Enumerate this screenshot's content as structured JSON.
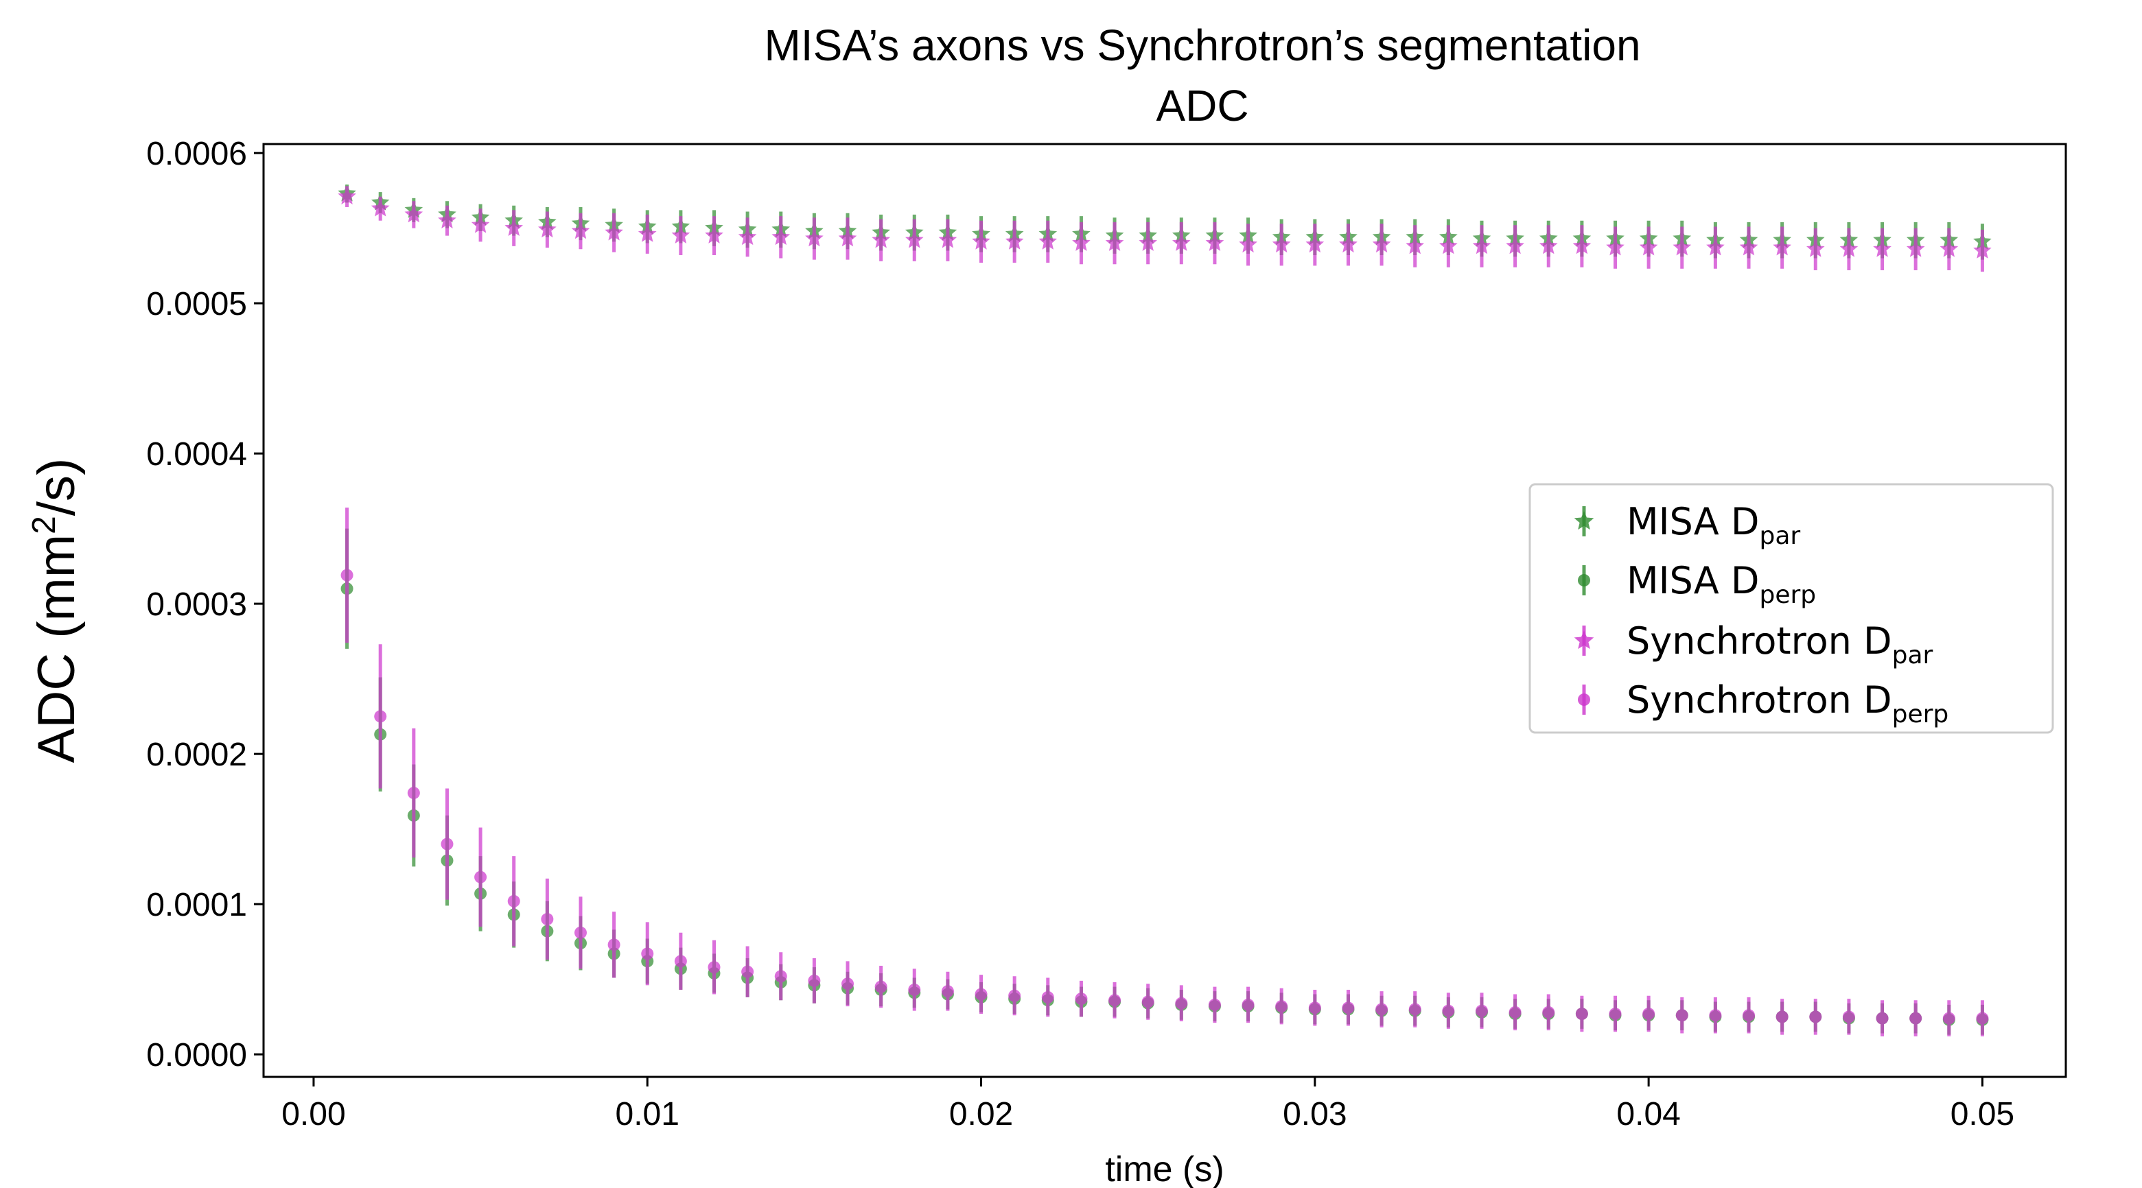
{
  "chart_data": {
    "type": "scatter",
    "title": "MISA’s axons vs Synchrotron’s segmentation",
    "subtitle": "ADC",
    "xlabel": "time (s)",
    "ylabel_main": "ADC (mm",
    "ylabel_sup": "2",
    "ylabel_tail": "/s)",
    "xlim": [
      -0.0015,
      0.0525
    ],
    "ylim": [
      -1.5e-05,
      0.000606
    ],
    "x_ticks": [
      0.0,
      0.01,
      0.02,
      0.03,
      0.04,
      0.05
    ],
    "x_tick_labels": [
      "0.00",
      "0.01",
      "0.02",
      "0.03",
      "0.04",
      "0.05"
    ],
    "y_ticks": [
      0.0,
      0.0001,
      0.0002,
      0.0003,
      0.0004,
      0.0005,
      0.0006
    ],
    "y_tick_labels": [
      "0.0000",
      "0.0001",
      "0.0002",
      "0.0003",
      "0.0004",
      "0.0005",
      "0.0006"
    ],
    "grid": false,
    "legend_position": "center-right",
    "x": [
      0.001,
      0.002,
      0.003,
      0.004,
      0.005,
      0.006,
      0.007,
      0.008,
      0.009,
      0.01,
      0.011,
      0.012,
      0.013,
      0.014,
      0.015,
      0.016,
      0.017,
      0.018,
      0.019,
      0.02,
      0.021,
      0.022,
      0.023,
      0.024,
      0.025,
      0.026,
      0.027,
      0.028,
      0.029,
      0.03,
      0.031,
      0.032,
      0.033,
      0.034,
      0.035,
      0.036,
      0.037,
      0.038,
      0.039,
      0.04,
      0.041,
      0.042,
      0.043,
      0.044,
      0.045,
      0.046,
      0.047,
      0.048,
      0.049,
      0.05
    ],
    "series": [
      {
        "name": "MISA D",
        "sub": "par",
        "marker": "star",
        "color": "#2e8b2e",
        "values": [
          0.000573,
          0.000567,
          0.000562,
          0.000559,
          0.000557,
          0.000555,
          0.000554,
          0.000553,
          0.000552,
          0.000551,
          0.000551,
          0.00055,
          0.000549,
          0.000549,
          0.000548,
          0.000548,
          0.000547,
          0.000547,
          0.000547,
          0.000546,
          0.000546,
          0.000546,
          0.000546,
          0.000545,
          0.000545,
          0.000545,
          0.000545,
          0.000545,
          0.000544,
          0.000544,
          0.000544,
          0.000544,
          0.000544,
          0.000544,
          0.000543,
          0.000543,
          0.000543,
          0.000543,
          0.000543,
          0.000543,
          0.000543,
          0.000542,
          0.000542,
          0.000542,
          0.000542,
          0.000542,
          0.000542,
          0.000542,
          0.000542,
          0.000541
        ],
        "errors": [
          6e-06,
          7e-06,
          8e-06,
          9e-06,
          9e-06,
          1e-05,
          1e-05,
          1.1e-05,
          1.1e-05,
          1.1e-05,
          1.1e-05,
          1.2e-05,
          1.2e-05,
          1.2e-05,
          1.2e-05,
          1.2e-05,
          1.2e-05,
          1.2e-05,
          1.2e-05,
          1.2e-05,
          1.2e-05,
          1.2e-05,
          1.2e-05,
          1.2e-05,
          1.2e-05,
          1.2e-05,
          1.2e-05,
          1.2e-05,
          1.2e-05,
          1.2e-05,
          1.2e-05,
          1.2e-05,
          1.2e-05,
          1.2e-05,
          1.2e-05,
          1.2e-05,
          1.2e-05,
          1.2e-05,
          1.2e-05,
          1.2e-05,
          1.2e-05,
          1.2e-05,
          1.2e-05,
          1.2e-05,
          1.2e-05,
          1.2e-05,
          1.2e-05,
          1.2e-05,
          1.2e-05,
          1.2e-05
        ]
      },
      {
        "name": "MISA D",
        "sub": "perp",
        "marker": "circle",
        "color": "#2e8b2e",
        "values": [
          0.00031,
          0.000213,
          0.000159,
          0.000129,
          0.000107,
          9.3e-05,
          8.2e-05,
          7.4e-05,
          6.7e-05,
          6.2e-05,
          5.7e-05,
          5.4e-05,
          5.1e-05,
          4.8e-05,
          4.6e-05,
          4.4e-05,
          4.3e-05,
          4.1e-05,
          4e-05,
          3.8e-05,
          3.7e-05,
          3.6e-05,
          3.5e-05,
          3.5e-05,
          3.4e-05,
          3.3e-05,
          3.2e-05,
          3.2e-05,
          3.1e-05,
          3e-05,
          3e-05,
          2.9e-05,
          2.9e-05,
          2.8e-05,
          2.8e-05,
          2.7e-05,
          2.7e-05,
          2.7e-05,
          2.6e-05,
          2.6e-05,
          2.6e-05,
          2.5e-05,
          2.5e-05,
          2.5e-05,
          2.5e-05,
          2.4e-05,
          2.4e-05,
          2.4e-05,
          2.3e-05,
          2.3e-05
        ],
        "errors": [
          4e-05,
          3.8e-05,
          3.4e-05,
          3e-05,
          2.5e-05,
          2.2e-05,
          2e-05,
          1.8e-05,
          1.6e-05,
          1.5e-05,
          1.4e-05,
          1.3e-05,
          1.3e-05,
          1.2e-05,
          1.2e-05,
          1.1e-05,
          1.1e-05,
          1e-05,
          1e-05,
          1e-05,
          1e-05,
          1e-05,
          1e-05,
          1e-05,
          1e-05,
          1e-05,
          1e-05,
          1e-05,
          1e-05,
          1e-05,
          1e-05,
          1e-05,
          1e-05,
          1e-05,
          1e-05,
          1e-05,
          1e-05,
          1e-05,
          1e-05,
          1e-05,
          1e-05,
          1e-05,
          1e-05,
          1e-05,
          1e-05,
          1e-05,
          1e-05,
          1e-05,
          1e-05,
          1e-05
        ]
      },
      {
        "name": "Synchrotron D",
        "sub": "par",
        "marker": "star",
        "color": "#cc33cc",
        "values": [
          0.000571,
          0.000563,
          0.000559,
          0.000555,
          0.000552,
          0.00055,
          0.000549,
          0.000548,
          0.000547,
          0.000546,
          0.000545,
          0.000545,
          0.000544,
          0.000544,
          0.000543,
          0.000543,
          0.000542,
          0.000542,
          0.000542,
          0.000541,
          0.000541,
          0.000541,
          0.00054,
          0.00054,
          0.00054,
          0.00054,
          0.00054,
          0.000539,
          0.000539,
          0.000539,
          0.000539,
          0.000539,
          0.000538,
          0.000538,
          0.000538,
          0.000538,
          0.000538,
          0.000538,
          0.000537,
          0.000537,
          0.000537,
          0.000537,
          0.000537,
          0.000537,
          0.000536,
          0.000536,
          0.000536,
          0.000536,
          0.000536,
          0.000535
        ],
        "errors": [
          7e-06,
          8e-06,
          9e-06,
          1e-05,
          1.1e-05,
          1.2e-05,
          1.2e-05,
          1.2e-05,
          1.3e-05,
          1.3e-05,
          1.3e-05,
          1.3e-05,
          1.3e-05,
          1.4e-05,
          1.4e-05,
          1.4e-05,
          1.4e-05,
          1.4e-05,
          1.4e-05,
          1.4e-05,
          1.4e-05,
          1.4e-05,
          1.4e-05,
          1.4e-05,
          1.4e-05,
          1.4e-05,
          1.4e-05,
          1.4e-05,
          1.4e-05,
          1.4e-05,
          1.4e-05,
          1.4e-05,
          1.4e-05,
          1.4e-05,
          1.4e-05,
          1.4e-05,
          1.4e-05,
          1.4e-05,
          1.4e-05,
          1.4e-05,
          1.4e-05,
          1.4e-05,
          1.4e-05,
          1.4e-05,
          1.4e-05,
          1.4e-05,
          1.4e-05,
          1.4e-05,
          1.4e-05,
          1.4e-05
        ]
      },
      {
        "name": "Synchrotron D",
        "sub": "perp",
        "marker": "circle",
        "color": "#cc33cc",
        "values": [
          0.000319,
          0.000225,
          0.000174,
          0.00014,
          0.000118,
          0.000102,
          9e-05,
          8.1e-05,
          7.3e-05,
          6.7e-05,
          6.2e-05,
          5.8e-05,
          5.5e-05,
          5.2e-05,
          4.9e-05,
          4.7e-05,
          4.5e-05,
          4.3e-05,
          4.2e-05,
          4e-05,
          3.9e-05,
          3.8e-05,
          3.7e-05,
          3.6e-05,
          3.5e-05,
          3.4e-05,
          3.3e-05,
          3.3e-05,
          3.2e-05,
          3.1e-05,
          3.1e-05,
          3e-05,
          3e-05,
          2.9e-05,
          2.9e-05,
          2.8e-05,
          2.8e-05,
          2.7e-05,
          2.7e-05,
          2.7e-05,
          2.6e-05,
          2.6e-05,
          2.6e-05,
          2.5e-05,
          2.5e-05,
          2.5e-05,
          2.4e-05,
          2.4e-05,
          2.4e-05,
          2.4e-05
        ],
        "errors": [
          4.5e-05,
          4.8e-05,
          4.3e-05,
          3.7e-05,
          3.3e-05,
          3e-05,
          2.7e-05,
          2.4e-05,
          2.2e-05,
          2.1e-05,
          1.9e-05,
          1.8e-05,
          1.7e-05,
          1.6e-05,
          1.5e-05,
          1.5e-05,
          1.4e-05,
          1.4e-05,
          1.3e-05,
          1.3e-05,
          1.3e-05,
          1.3e-05,
          1.2e-05,
          1.2e-05,
          1.2e-05,
          1.2e-05,
          1.2e-05,
          1.2e-05,
          1.2e-05,
          1.2e-05,
          1.2e-05,
          1.2e-05,
          1.2e-05,
          1.2e-05,
          1.2e-05,
          1.2e-05,
          1.2e-05,
          1.2e-05,
          1.2e-05,
          1.2e-05,
          1.2e-05,
          1.2e-05,
          1.2e-05,
          1.2e-05,
          1.2e-05,
          1.2e-05,
          1.2e-05,
          1.2e-05,
          1.2e-05,
          1.2e-05
        ]
      }
    ]
  }
}
